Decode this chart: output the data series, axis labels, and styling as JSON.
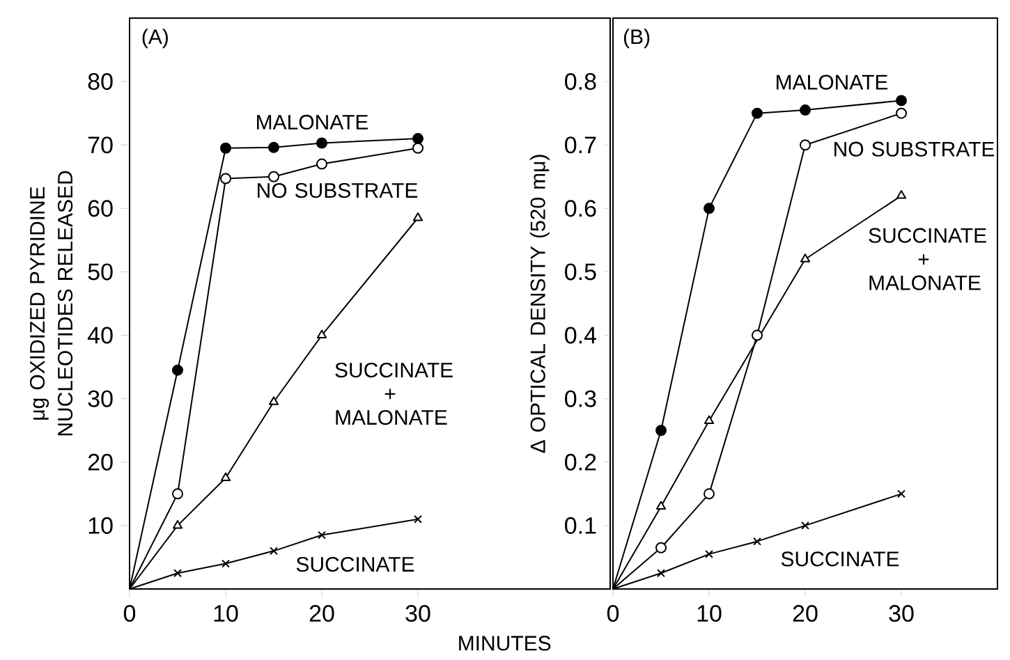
{
  "chart_data": [
    {
      "type": "line",
      "title": "(A)",
      "xlabel": "MINUTES",
      "ylabel": "μg OXIDIZED PYRIDINE NUCLEOTIDES RELEASED",
      "x": [
        0,
        5,
        10,
        15,
        20,
        30
      ],
      "xlim": [
        0,
        50
      ],
      "ylim": [
        0,
        90
      ],
      "xticks": [
        0,
        10,
        20,
        30
      ],
      "yticks": [
        10,
        20,
        30,
        40,
        50,
        60,
        70,
        80
      ],
      "series": [
        {
          "name": "MALONATE",
          "color": "#000000",
          "marker": "circle",
          "values": [
            0,
            34.5,
            69.5,
            69.6,
            70.3,
            71
          ]
        },
        {
          "name": "NO SUBSTRATE",
          "color": "#000000",
          "marker": "circle",
          "values": [
            0,
            15,
            64.7,
            65,
            67,
            69.5
          ]
        },
        {
          "name": "SUCCINATE + MALONATE",
          "color": "#000000",
          "marker": "triangle",
          "values": [
            0,
            10,
            17.5,
            29.5,
            40,
            58.5
          ]
        },
        {
          "name": "SUCCINATE",
          "color": "#000000",
          "marker": "cross",
          "values": [
            0,
            2.5,
            4,
            6,
            8.5,
            11
          ]
        }
      ]
    },
    {
      "type": "line",
      "title": "(B)",
      "ylabel": "Δ OPTICAL DENSITY (520 mμ)",
      "xlim": [
        0,
        40
      ],
      "ylim": [
        0,
        0.9
      ],
      "xticks": [
        0,
        10,
        20,
        30
      ],
      "yticks": [
        0.1,
        0.2,
        0.3,
        0.4,
        0.5,
        0.6,
        0.7,
        0.8
      ],
      "series": [
        {
          "name": "MALONATE",
          "color": "#000000",
          "marker": "circle",
          "x": [
            0,
            5,
            10,
            15,
            20,
            30
          ],
          "values": [
            0,
            0.25,
            0.6,
            0.75,
            0.755,
            0.77
          ]
        },
        {
          "name": "NO SUBSTRATE",
          "color": "#000000",
          "marker": "circle",
          "x": [
            0,
            5,
            10,
            15,
            20,
            30
          ],
          "values": [
            0,
            0.065,
            0.15,
            0.4,
            0.7,
            0.75
          ]
        },
        {
          "name": "SUCCINATE + MALONATE",
          "color": "#000000",
          "marker": "triangle",
          "x": [
            0,
            5,
            10,
            20,
            30
          ],
          "values": [
            0,
            0.13,
            0.265,
            0.52,
            0.62
          ]
        },
        {
          "name": "SUCCINATE",
          "color": "#000000",
          "marker": "cross",
          "x": [
            0,
            5,
            10,
            15,
            20,
            30
          ],
          "values": [
            0,
            0.025,
            0.055,
            0.075,
            0.1,
            0.15
          ]
        }
      ]
    }
  ]
}
